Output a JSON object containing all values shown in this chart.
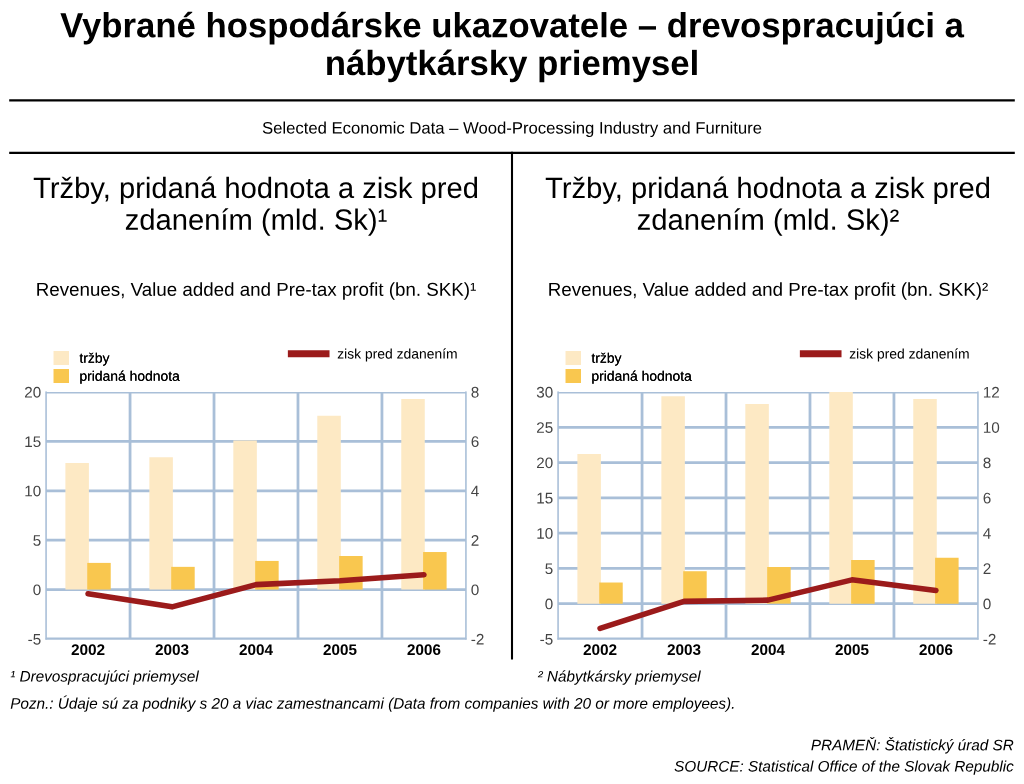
{
  "chart_data": [
    {
      "type": "bar",
      "title": "Tržby, pridaná hodnota a zisk pred zdanením (mld. Sk)¹",
      "subtitle": "Revenues, Value added and Pre-tax profit (bn. SKK)¹",
      "categories": [
        "2002",
        "2003",
        "2004",
        "2005",
        "2006"
      ],
      "series": [
        {
          "name": "tržby",
          "color": "#fde9c4",
          "values": [
            12.8,
            13.4,
            15.1,
            17.6,
            19.3
          ]
        },
        {
          "name": "pridaná hodnota",
          "color": "#f9c74f",
          "values": [
            2.7,
            2.3,
            2.9,
            3.4,
            3.8
          ]
        },
        {
          "name": "zisk pred zdanením",
          "type": "line",
          "axis": "y2",
          "color": "#9b1b1b",
          "values": [
            -0.17,
            -0.7,
            0.2,
            0.36,
            0.6
          ]
        }
      ],
      "ylim": [
        -5,
        20
      ],
      "yticks": [
        -5,
        0,
        5,
        10,
        15,
        20
      ],
      "y2lim": [
        -2,
        8
      ],
      "y2ticks": [
        -2,
        0,
        2,
        4,
        6,
        8
      ],
      "grid": true,
      "legend": "top",
      "marker": "none",
      "line_style": "solid",
      "annotations": [
        "Vybrané hospodárske ukazovatele – drevospracujúci a nábytkársky priemysel",
        "Selected Economic Data – Wood-Processing Industry and Furniture",
        "¹ Drevospracujúci priemysel",
        "Pozn.: Údaje sú za podniky s 20 a viac zamestnancami (Data from companies with 20 or more employees).",
        "PRAMEŇ: Štatistický úrad SR",
        "SOURCE: Statistical Office of the Slovak Republic"
      ]
    },
    {
      "type": "bar",
      "title": "Tržby, pridaná hodnota a zisk pred zdanením (mld. Sk)²",
      "subtitle": "Revenues, Value added and Pre-tax profit (bn. SKK)²",
      "categories": [
        "2002",
        "2003",
        "2004",
        "2005",
        "2006"
      ],
      "series": [
        {
          "name": "tržby",
          "color": "#fde9c4",
          "values": [
            21.2,
            29.4,
            28.3,
            30,
            29.0
          ]
        },
        {
          "name": "pridaná hodnota",
          "color": "#f9c74f",
          "values": [
            3.0,
            4.6,
            5.2,
            6.2,
            6.5
          ]
        },
        {
          "name": "zisk pred zdanením",
          "type": "line",
          "axis": "y2",
          "color": "#9b1b1b",
          "values": [
            -1.4,
            0.13,
            0.2,
            1.35,
            0.75
          ]
        }
      ],
      "ylim": [
        -5,
        30
      ],
      "yticks": [
        -5,
        0,
        5,
        10,
        15,
        20,
        25,
        30
      ],
      "y2lim": [
        -2,
        12
      ],
      "y2ticks": [
        -2,
        0,
        2,
        4,
        6,
        8,
        10,
        12
      ],
      "grid": true,
      "legend": "top",
      "marker": "none",
      "line_style": "solid",
      "annotations": [
        "² Nábytkársky priemysel"
      ]
    }
  ]
}
